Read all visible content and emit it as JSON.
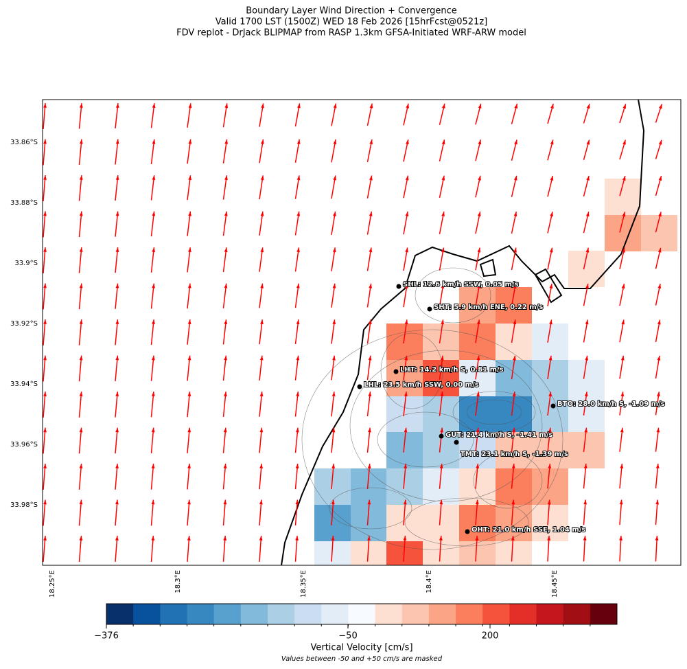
{
  "title": [
    "Boundary Layer Wind Direction + Convergence",
    "Valid 1700 LST (1500Z) WED 18 Feb 2026 [15hrFcst@0521z]",
    "FDV replot - DrJack BLIPMAP from RASP 1.3km GFSA-Initiated WRF-ARW model"
  ],
  "lat_ticks": [
    "33.86°S",
    "33.88°S",
    "33.9°S",
    "33.92°S",
    "33.94°S",
    "33.96°S",
    "33.98°S"
  ],
  "lon_ticks": [
    "18.25°E",
    "18.3°E",
    "18.35°E",
    "18.4°E",
    "18.45°E"
  ],
  "stations": [
    "SHL: 12.6 km/h SSW, 0.05 m/s",
    "SHT: 5.9 km/h ENE, 0.22 m/s",
    "LHT: 14.2 km/h S, 0.81 m/s",
    "LHL: 23.5 km/h SSW, 0.00 m/s",
    "BTO: 28.0 km/h S, -1.09 m/s",
    "GUT: 21.4 km/h S, -1.41 m/s",
    "TMT: 23.1 km/h S, -1.39 m/s",
    "OHT: 21.0 km/h SSE, 1.04 m/s"
  ],
  "colorbar": {
    "label": "Vertical Velocity [cm/s]",
    "note": "Values between -50 and +50 cm/s are masked",
    "colors": [
      "#08306b",
      "#08519c",
      "#2171b5",
      "#3787c0",
      "#58a1cf",
      "#82badb",
      "#abd0e6",
      "#cbdef1",
      "#e2edf8",
      "#f7fbff",
      "#fee0d2",
      "#fcc5b0",
      "#fca486",
      "#fb7f5d",
      "#f5533b",
      "#e32f27",
      "#c4161c",
      "#a10f15",
      "#67000d"
    ],
    "ticks": [
      {
        "value": -376,
        "label": "−376"
      },
      {
        "value": -50,
        "label": "−50"
      },
      200
    ]
  }
}
